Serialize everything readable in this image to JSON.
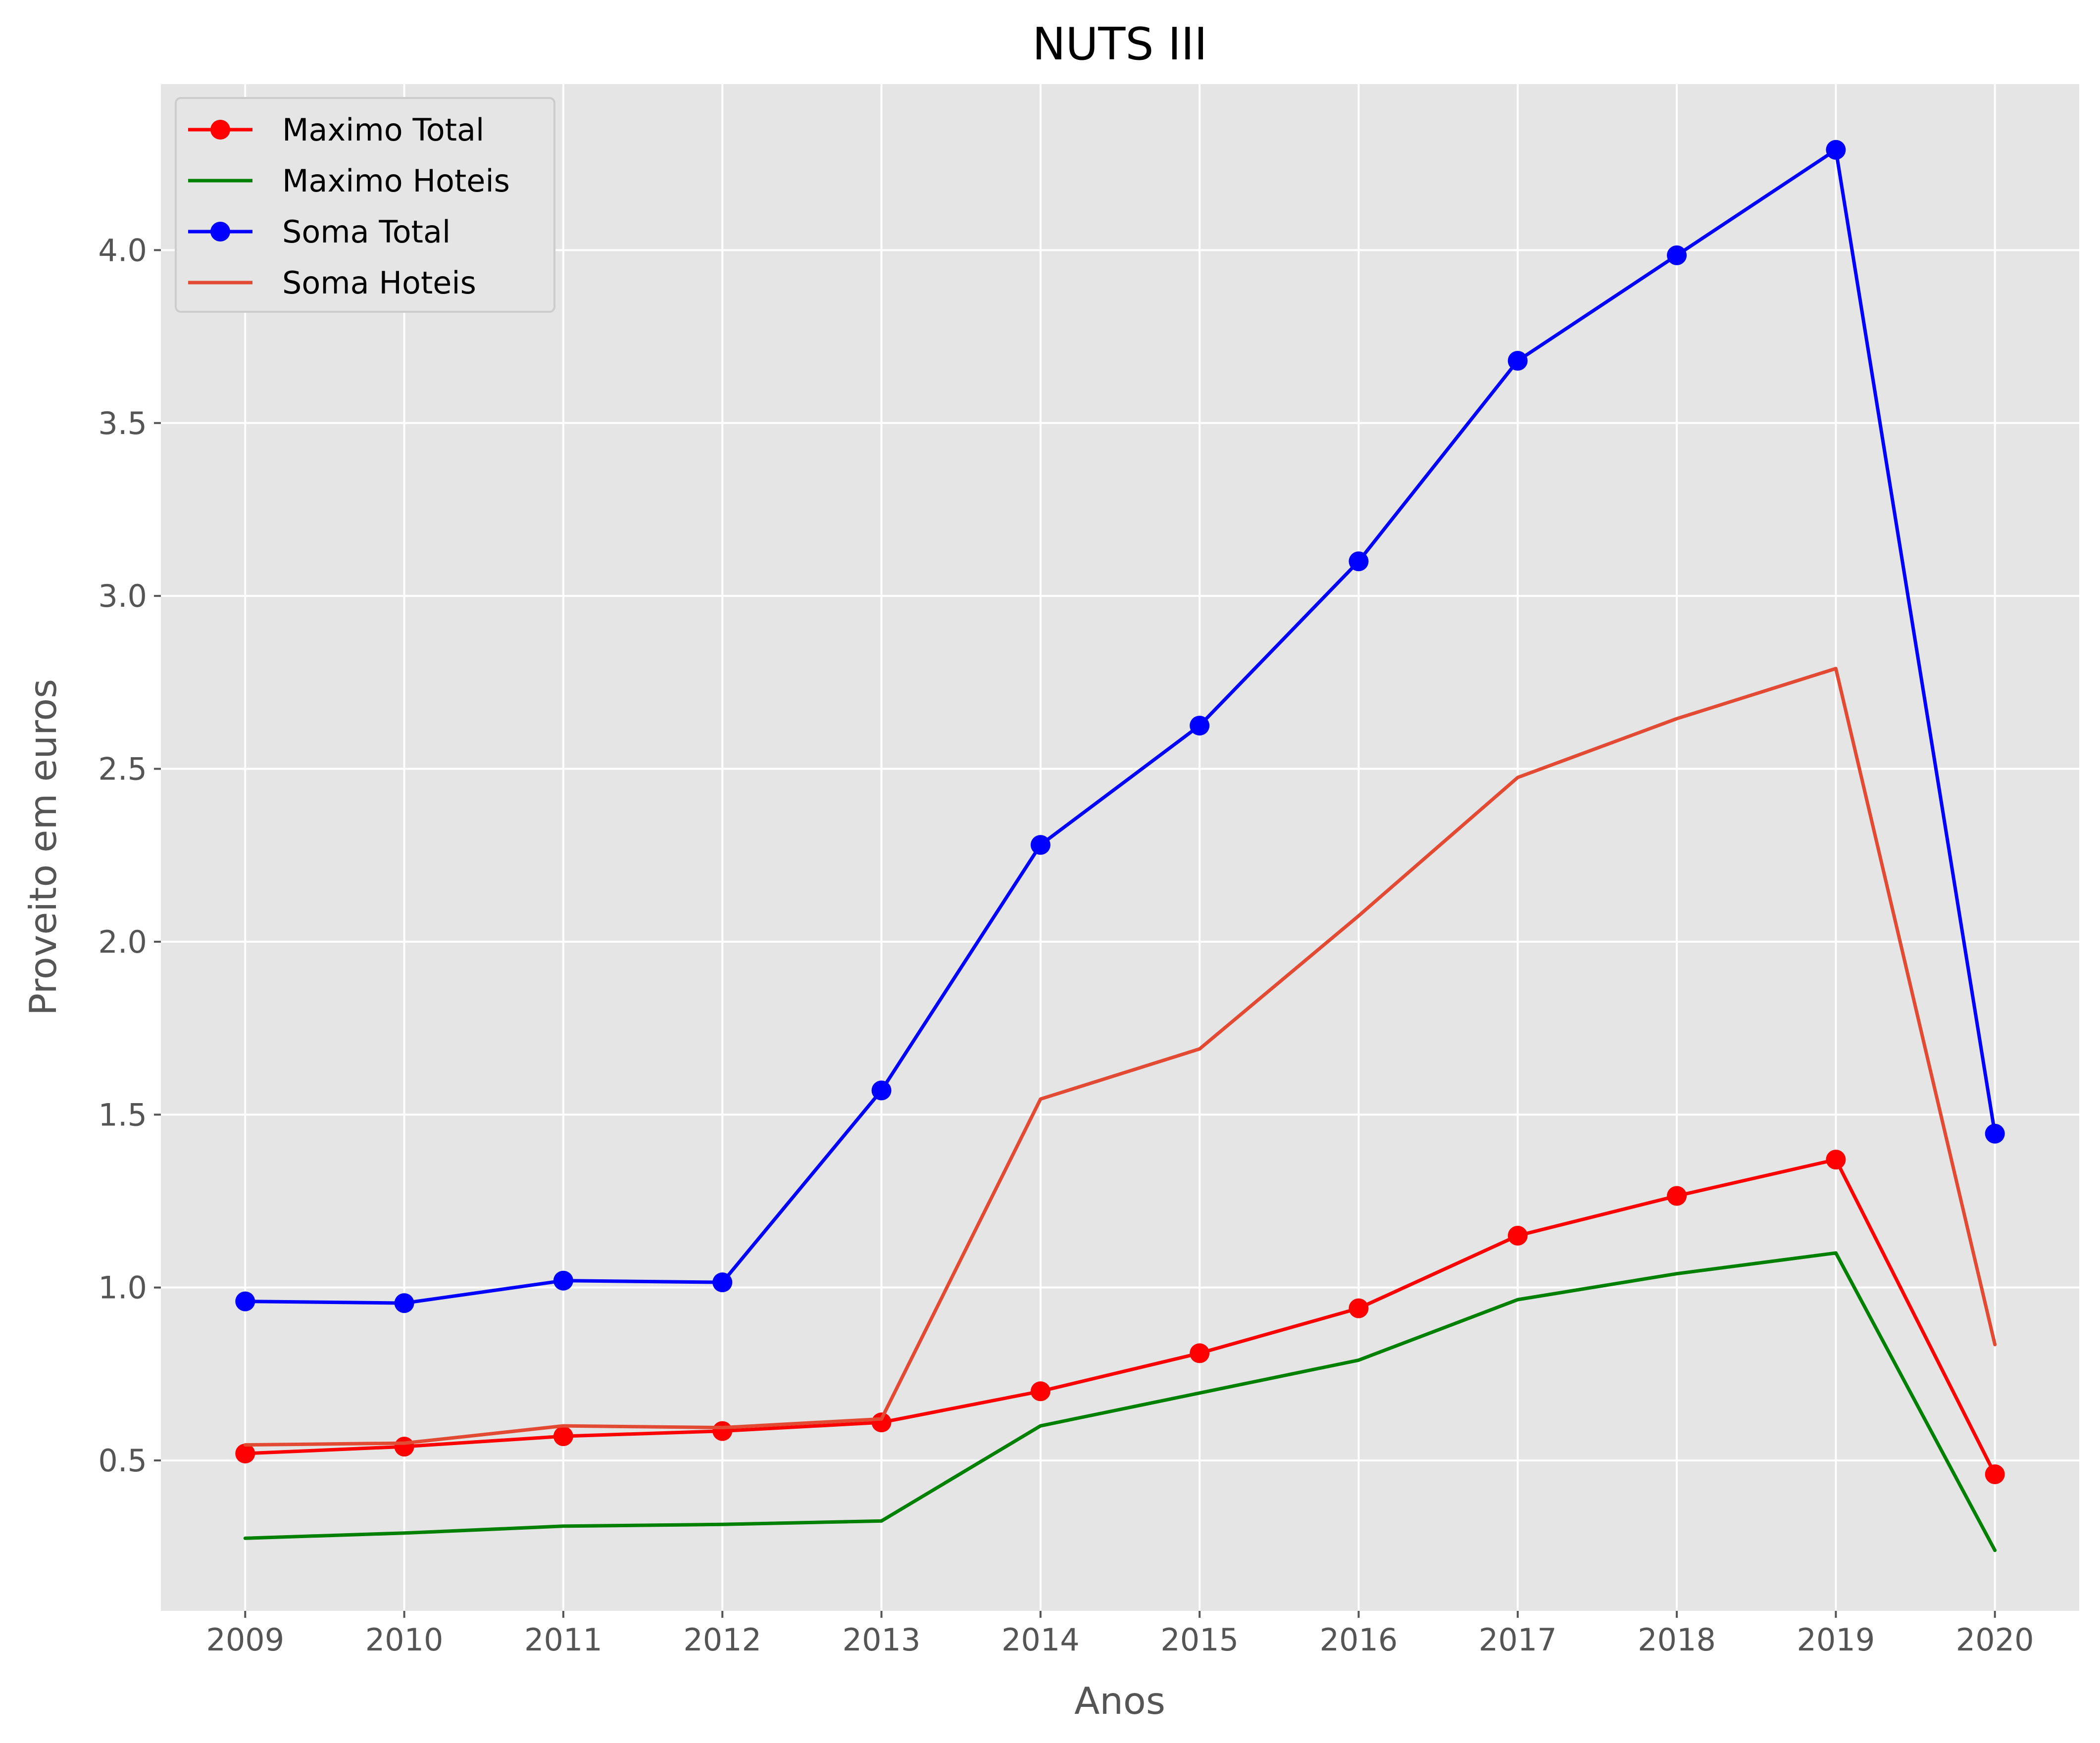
{
  "chart_data": {
    "type": "line",
    "title": "NUTS III",
    "xlabel": "Anos",
    "ylabel": "Proveito em euros",
    "x": [
      2009,
      2010,
      2011,
      2012,
      2013,
      2014,
      2015,
      2016,
      2017,
      2018,
      2019,
      2020
    ],
    "x_tick_labels": [
      "2009",
      "2010",
      "2011",
      "2012",
      "2013",
      "2014",
      "2015",
      "2016",
      "2017",
      "2018",
      "2019",
      "2020"
    ],
    "y_ticks": [
      0.5,
      1.0,
      1.5,
      2.0,
      2.5,
      3.0,
      3.5,
      4.0
    ],
    "y_tick_labels": [
      "0.5",
      "1.0",
      "1.5",
      "2.0",
      "2.5",
      "3.0",
      "3.5",
      "4.0"
    ],
    "xlim": [
      2008.47,
      2020.53
    ],
    "ylim": [
      0.065,
      4.48
    ],
    "grid": true,
    "legend_position": "top-left",
    "background": "#e5e5e5",
    "series": [
      {
        "name": "Maximo Total",
        "color": "#ff0000",
        "markers": true,
        "values": [
          0.52,
          0.54,
          0.57,
          0.585,
          0.61,
          0.7,
          0.81,
          0.94,
          1.15,
          1.265,
          1.37,
          0.46
        ]
      },
      {
        "name": "Maximo Hoteis",
        "color": "#008000",
        "markers": false,
        "values": [
          0.275,
          0.29,
          0.31,
          0.315,
          0.325,
          0.6,
          0.695,
          0.79,
          0.965,
          1.04,
          1.1,
          0.24
        ]
      },
      {
        "name": "Soma Total",
        "color": "#0000ff",
        "markers": true,
        "values": [
          0.96,
          0.955,
          1.02,
          1.015,
          1.57,
          2.28,
          2.625,
          3.1,
          3.68,
          3.985,
          4.29,
          1.445
        ]
      },
      {
        "name": "Soma Hoteis",
        "color": "#e24a33",
        "markers": false,
        "values": [
          0.545,
          0.55,
          0.6,
          0.595,
          0.62,
          1.545,
          1.69,
          2.075,
          2.475,
          2.645,
          2.79,
          0.835
        ]
      }
    ]
  }
}
